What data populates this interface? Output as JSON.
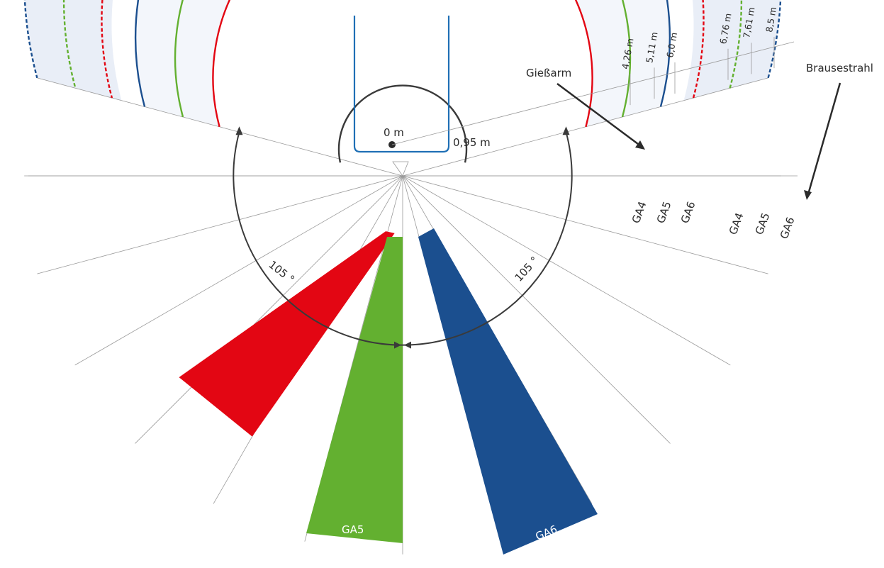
{
  "colors": {
    "ga4": "#e30613",
    "ga5": "#63b030",
    "ga6": "#1b4f8f",
    "spray_band": "#e9eef7",
    "guide": "#9a9a9a",
    "arc": "#3a3a3a",
    "text": "#2b2b2b",
    "machine": "#1f6fb5"
  },
  "labels": {
    "center": "0 m",
    "inner_radius": "0,95 m",
    "arm_label": "Gießarm",
    "spray_label": "Brausestrahl",
    "angle_left": "105 °",
    "angle_right": "105 °"
  },
  "distances": [
    {
      "id": "d426",
      "label": "4,26 m",
      "value_m": 4.26
    },
    {
      "id": "d511",
      "label": "5,11 m",
      "value_m": 5.11
    },
    {
      "id": "d60",
      "label": "6,0 m",
      "value_m": 6.0
    },
    {
      "id": "d676",
      "label": "6,76 m",
      "value_m": 6.76
    },
    {
      "id": "d761",
      "label": "7,61 m",
      "value_m": 7.61
    },
    {
      "id": "d85",
      "label": "8,5 m",
      "value_m": 8.5
    }
  ],
  "arms": [
    {
      "id": "ga4",
      "label": "GA4",
      "reach_m": 6.76,
      "ring_m": 4.26,
      "spray_m": 6.76
    },
    {
      "id": "ga5",
      "label": "GA5",
      "reach_m": 7.61,
      "ring_m": 5.11,
      "spray_m": 7.61
    },
    {
      "id": "ga6",
      "label": "GA6",
      "reach_m": 8.5,
      "ring_m": 6.0,
      "spray_m": 8.5
    }
  ],
  "ring_labels_solid": [
    "GA4",
    "GA5",
    "GA6"
  ],
  "ring_labels_dashed": [
    "GA4",
    "GA5",
    "GA6"
  ]
}
